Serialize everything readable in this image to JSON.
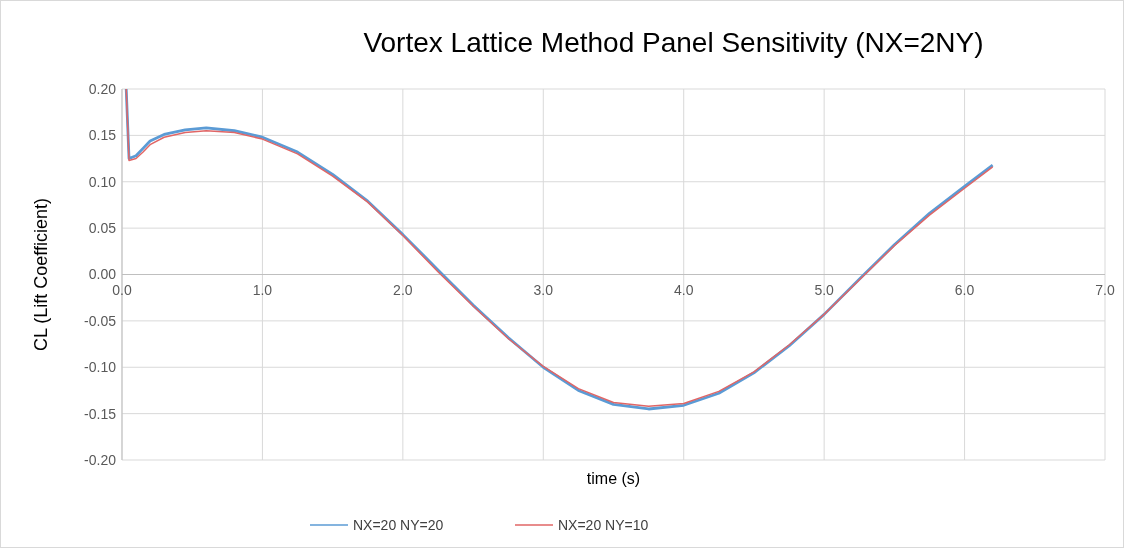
{
  "chart_data": {
    "type": "line",
    "title": "Vortex Lattice Method Panel Sensitivity (NX=2NY)",
    "xlabel": "time (s)",
    "ylabel": "CL (Lift Coefficient)",
    "xlim": [
      0,
      7
    ],
    "ylim": [
      -0.2,
      0.2
    ],
    "xticks": [
      {
        "value": 0,
        "label": "0.0"
      },
      {
        "value": 1,
        "label": "1.0"
      },
      {
        "value": 2,
        "label": "2.0"
      },
      {
        "value": 3,
        "label": "3.0"
      },
      {
        "value": 4,
        "label": "4.0"
      },
      {
        "value": 5,
        "label": "5.0"
      },
      {
        "value": 6,
        "label": "6.0"
      },
      {
        "value": 7,
        "label": "7.0"
      }
    ],
    "yticks": [
      {
        "value": -0.2,
        "label": "-0.20"
      },
      {
        "value": -0.15,
        "label": "-0.15"
      },
      {
        "value": -0.1,
        "label": "-0.10"
      },
      {
        "value": -0.05,
        "label": "-0.05"
      },
      {
        "value": 0,
        "label": "0.00"
      },
      {
        "value": 0.05,
        "label": "0.05"
      },
      {
        "value": 0.1,
        "label": "0.10"
      },
      {
        "value": 0.15,
        "label": "0.15"
      },
      {
        "value": 0.2,
        "label": "0.20"
      }
    ],
    "grid": true,
    "legend": "bottom",
    "marker": "none",
    "line_style": "solid",
    "series": [
      {
        "name": "NX=20 NY=20",
        "color": "#5b9bd5",
        "x": [
          0.03,
          0.05,
          0.1,
          0.15,
          0.2,
          0.3,
          0.45,
          0.6,
          0.8,
          1.0,
          1.25,
          1.5,
          1.75,
          2.0,
          2.25,
          2.5,
          2.75,
          3.0,
          3.25,
          3.5,
          3.75,
          4.0,
          4.25,
          4.5,
          4.75,
          5.0,
          5.25,
          5.5,
          5.75,
          6.0,
          6.2
        ],
        "values": [
          0.2,
          0.125,
          0.128,
          0.136,
          0.144,
          0.151,
          0.156,
          0.158,
          0.155,
          0.148,
          0.132,
          0.108,
          0.079,
          0.043,
          0.005,
          -0.033,
          -0.068,
          -0.1,
          -0.125,
          -0.14,
          -0.145,
          -0.141,
          -0.128,
          -0.106,
          -0.077,
          -0.043,
          -0.005,
          0.032,
          0.066,
          0.095,
          0.118
        ]
      },
      {
        "name": "NX=20 NY=10",
        "color": "#e06666",
        "x": [
          0.03,
          0.05,
          0.1,
          0.15,
          0.2,
          0.3,
          0.45,
          0.6,
          0.8,
          1.0,
          1.25,
          1.5,
          1.75,
          2.0,
          2.25,
          2.5,
          2.75,
          3.0,
          3.25,
          3.5,
          3.75,
          4.0,
          4.25,
          4.5,
          4.75,
          5.0,
          5.25,
          5.5,
          5.75,
          6.0,
          6.2
        ],
        "values": [
          0.2,
          0.123,
          0.125,
          0.132,
          0.14,
          0.148,
          0.153,
          0.155,
          0.153,
          0.146,
          0.13,
          0.106,
          0.078,
          0.042,
          0.003,
          -0.034,
          -0.069,
          -0.099,
          -0.123,
          -0.138,
          -0.142,
          -0.139,
          -0.126,
          -0.105,
          -0.076,
          -0.043,
          -0.006,
          0.031,
          0.064,
          0.093,
          0.116
        ]
      }
    ]
  }
}
